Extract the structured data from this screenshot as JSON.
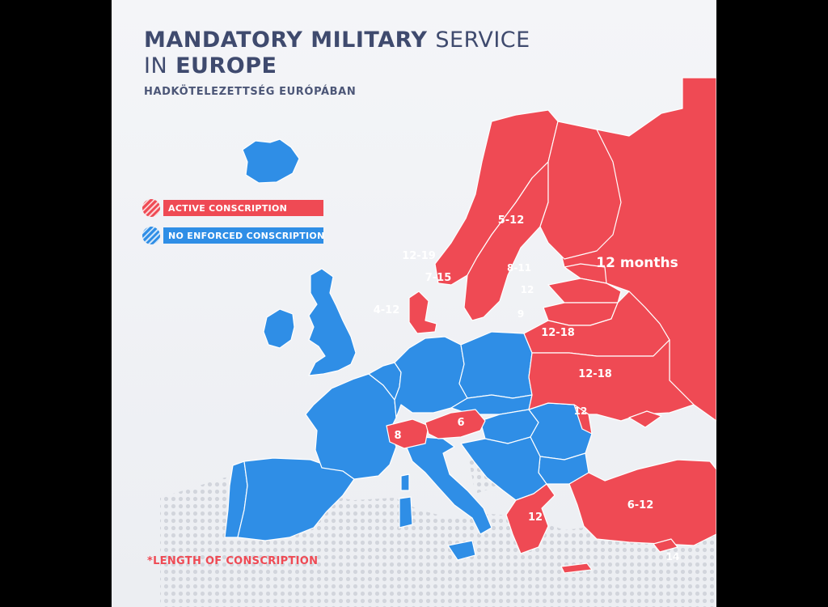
{
  "title": {
    "bold_1": "MANDATORY MILITARY",
    "light_1": "SERVICE",
    "light_2": "IN",
    "bold_2": "EUROPE"
  },
  "subtitle": "HADKÖTELEZETTSÉG EURÓPÁBAN",
  "legend": {
    "active": {
      "label": "ACTIVE CONSCRIPTION",
      "color": "#ef4a54"
    },
    "none": {
      "label": "NO ENFORCED CONSCRIPTION",
      "color": "#2f8ee6"
    }
  },
  "footnote": "*LENGTH OF CONSCRIPTION",
  "regions": [
    {
      "name": "Russia",
      "status": "active",
      "label": "12 months"
    },
    {
      "name": "Norway",
      "status": "active",
      "label": "12-19"
    },
    {
      "name": "Sweden",
      "status": "active",
      "label": "7-15"
    },
    {
      "name": "Finland",
      "status": "active",
      "label": "5-12"
    },
    {
      "name": "Estonia",
      "status": "active",
      "label": "8-11"
    },
    {
      "name": "Latvia",
      "status": "active",
      "label": "12"
    },
    {
      "name": "Lithuania",
      "status": "active",
      "label": "9"
    },
    {
      "name": "Belarus",
      "status": "active",
      "label": "12-18"
    },
    {
      "name": "Ukraine",
      "status": "active",
      "label": "12-18"
    },
    {
      "name": "Moldova",
      "status": "active",
      "label": "12"
    },
    {
      "name": "Denmark",
      "status": "active",
      "label": "4-12"
    },
    {
      "name": "Switzerland",
      "status": "active",
      "label": "8"
    },
    {
      "name": "Austria",
      "status": "active",
      "label": "6"
    },
    {
      "name": "Greece",
      "status": "active",
      "label": "12"
    },
    {
      "name": "Turkey",
      "status": "active",
      "label": "6-12"
    },
    {
      "name": "Cyprus",
      "status": "active",
      "label": "14"
    }
  ]
}
